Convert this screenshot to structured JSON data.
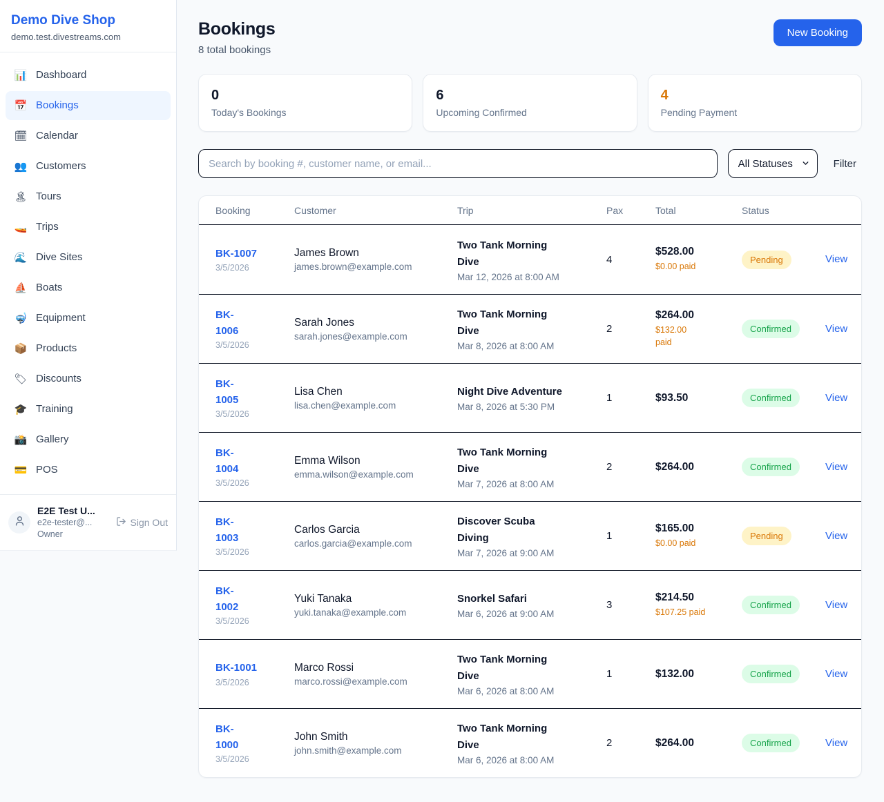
{
  "colors": {
    "accent_blue": "#2563eb",
    "pending_text": "#d97706",
    "pending_bg": "#fef3c7",
    "confirmed_text": "#16a34a",
    "confirmed_bg": "#dcfce7",
    "dark_text": "#0f172a",
    "muted_text": "#64748b",
    "page_bg": "#f8fafc"
  },
  "sidebar": {
    "brand": {
      "name": "Demo Dive Shop",
      "domain": "demo.test.divestreams.com"
    },
    "nav": [
      {
        "label": "Dashboard",
        "icon": "bar-chart-icon",
        "glyph": "📊",
        "active": false
      },
      {
        "label": "Bookings",
        "icon": "calendar-icon",
        "glyph": "📅",
        "active": true
      },
      {
        "label": "Calendar",
        "icon": "spiral-calendar-icon",
        "glyph": "🗓",
        "active": false
      },
      {
        "label": "Customers",
        "icon": "people-icon",
        "glyph": "👥",
        "active": false
      },
      {
        "label": "Tours",
        "icon": "island-icon",
        "glyph": "🏝",
        "active": false
      },
      {
        "label": "Trips",
        "icon": "speedboat-icon",
        "glyph": "🚤",
        "active": false
      },
      {
        "label": "Dive Sites",
        "icon": "wave-icon",
        "glyph": "🌊",
        "active": false
      },
      {
        "label": "Boats",
        "icon": "sailboat-icon",
        "glyph": "⛵",
        "active": false
      },
      {
        "label": "Equipment",
        "icon": "diving-mask-icon",
        "glyph": "🤿",
        "active": false
      },
      {
        "label": "Products",
        "icon": "package-icon",
        "glyph": "📦",
        "active": false
      },
      {
        "label": "Discounts",
        "icon": "label-tag-icon",
        "glyph": "🏷",
        "active": false
      },
      {
        "label": "Training",
        "icon": "graduation-cap-icon",
        "glyph": "🎓",
        "active": false
      },
      {
        "label": "Gallery",
        "icon": "camera-icon",
        "glyph": "📸",
        "active": false
      },
      {
        "label": "POS",
        "icon": "credit-card-icon",
        "glyph": "💳",
        "active": false
      }
    ],
    "user": {
      "name": "E2E Test U...",
      "email": "e2e-tester@...",
      "role": "Owner",
      "sign_out_label": "Sign Out"
    }
  },
  "header": {
    "title": "Bookings",
    "subtitle": "8 total bookings",
    "new_booking_label": "New Booking"
  },
  "stats": [
    {
      "value": "0",
      "label": "Today's Bookings",
      "color": "#0f172a"
    },
    {
      "value": "6",
      "label": "Upcoming Confirmed",
      "color": "#0f172a"
    },
    {
      "value": "4",
      "label": "Pending Payment",
      "color": "#d97706"
    }
  ],
  "filters": {
    "search_placeholder": "Search by booking #, customer name, or email...",
    "status_selected": "All Statuses",
    "filter_label": "Filter"
  },
  "table": {
    "columns": [
      "Booking",
      "Customer",
      "Trip",
      "Pax",
      "Total",
      "Status"
    ],
    "view_label": "View",
    "rows": [
      {
        "id_lines": [
          "BK-1007"
        ],
        "date": "3/5/2026",
        "customer": "James Brown",
        "email": "james.brown@example.com",
        "trip_lines": [
          "Two Tank Morning",
          "Dive"
        ],
        "trip_date": "Mar 12, 2026 at 8:00 AM",
        "pax": "4",
        "total": "$528.00",
        "paid_lines": [
          "$0.00 paid"
        ],
        "status": "Pending"
      },
      {
        "id_lines": [
          "BK-",
          "1006"
        ],
        "date": "3/5/2026",
        "customer": "Sarah Jones",
        "email": "sarah.jones@example.com",
        "trip_lines": [
          "Two Tank Morning",
          "Dive"
        ],
        "trip_date": "Mar 8, 2026 at 8:00 AM",
        "pax": "2",
        "total": "$264.00",
        "paid_lines": [
          "$132.00",
          "paid"
        ],
        "status": "Confirmed"
      },
      {
        "id_lines": [
          "BK-",
          "1005"
        ],
        "date": "3/5/2026",
        "customer": "Lisa Chen",
        "email": "lisa.chen@example.com",
        "trip_lines": [
          "Night Dive Adventure"
        ],
        "trip_date": "Mar 8, 2026 at 5:30 PM",
        "pax": "1",
        "total": "$93.50",
        "paid_lines": [],
        "status": "Confirmed"
      },
      {
        "id_lines": [
          "BK-",
          "1004"
        ],
        "date": "3/5/2026",
        "customer": "Emma Wilson",
        "email": "emma.wilson@example.com",
        "trip_lines": [
          "Two Tank Morning",
          "Dive"
        ],
        "trip_date": "Mar 7, 2026 at 8:00 AM",
        "pax": "2",
        "total": "$264.00",
        "paid_lines": [],
        "status": "Confirmed"
      },
      {
        "id_lines": [
          "BK-",
          "1003"
        ],
        "date": "3/5/2026",
        "customer": "Carlos Garcia",
        "email": "carlos.garcia@example.com",
        "trip_lines": [
          "Discover Scuba",
          "Diving"
        ],
        "trip_date": "Mar 7, 2026 at 9:00 AM",
        "pax": "1",
        "total": "$165.00",
        "paid_lines": [
          "$0.00 paid"
        ],
        "status": "Pending"
      },
      {
        "id_lines": [
          "BK-",
          "1002"
        ],
        "date": "3/5/2026",
        "customer": "Yuki Tanaka",
        "email": "yuki.tanaka@example.com",
        "trip_lines": [
          "Snorkel Safari"
        ],
        "trip_date": "Mar 6, 2026 at 9:00 AM",
        "pax": "3",
        "total": "$214.50",
        "paid_lines": [
          "$107.25 paid"
        ],
        "status": "Confirmed"
      },
      {
        "id_lines": [
          "BK-1001"
        ],
        "date": "3/5/2026",
        "customer": "Marco Rossi",
        "email": "marco.rossi@example.com",
        "trip_lines": [
          "Two Tank Morning",
          "Dive"
        ],
        "trip_date": "Mar 6, 2026 at 8:00 AM",
        "pax": "1",
        "total": "$132.00",
        "paid_lines": [],
        "status": "Confirmed"
      },
      {
        "id_lines": [
          "BK-",
          "1000"
        ],
        "date": "3/5/2026",
        "customer": "John Smith",
        "email": "john.smith@example.com",
        "trip_lines": [
          "Two Tank Morning",
          "Dive"
        ],
        "trip_date": "Mar 6, 2026 at 8:00 AM",
        "pax": "2",
        "total": "$264.00",
        "paid_lines": [],
        "status": "Confirmed"
      }
    ]
  }
}
